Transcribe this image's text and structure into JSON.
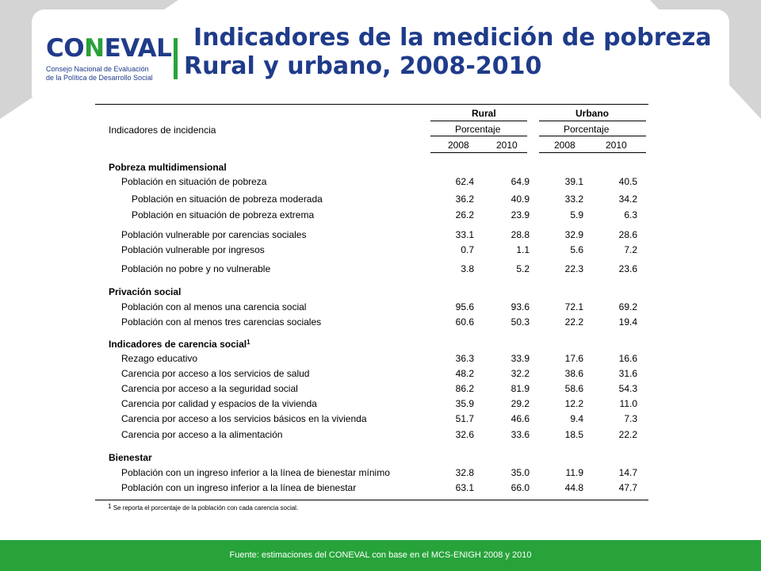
{
  "header": {
    "logo_text_a": "CO",
    "logo_text_l": "N",
    "logo_text_b": "EVAL",
    "logo_tag_1": "Consejo Nacional de Evaluación",
    "logo_tag_2": "de la Política de Desarrollo Social",
    "title_line1": "Indicadores de la medición de pobreza",
    "title_line2": "Rural y urbano, 2008-2010",
    "accent_color": "#1f3b8a",
    "green_color": "#27a33a"
  },
  "table": {
    "stub_header": "Indicadores de incidencia",
    "group_rural": "Rural",
    "group_urbano": "Urbano",
    "unit_rural": "Porcentaje",
    "unit_urbano": "Porcentaje",
    "years": [
      "2008",
      "2010",
      "2008",
      "2010"
    ],
    "rows": [
      {
        "kind": "section",
        "label": "Pobreza multidimensional",
        "sup": ""
      },
      {
        "kind": "lvl1",
        "label": "Población en situación de pobreza",
        "values": [
          "62.4",
          "64.9",
          "39.1",
          "40.5"
        ]
      },
      {
        "kind": "lvl2",
        "label": "Población en situación de pobreza moderada",
        "values": [
          "36.2",
          "40.9",
          "33.2",
          "34.2"
        ]
      },
      {
        "kind": "lvl2",
        "label": "Población en situación de pobreza extrema",
        "values": [
          "26.2",
          "23.9",
          "5.9",
          "6.3"
        ]
      },
      {
        "kind": "lvl1",
        "label": "Población vulnerable por carencias sociales",
        "values": [
          "33.1",
          "28.8",
          "32.9",
          "28.6"
        ]
      },
      {
        "kind": "lvl1",
        "label": "Población vulnerable por ingresos",
        "values": [
          "0.7",
          "1.1",
          "5.6",
          "7.2"
        ]
      },
      {
        "kind": "lvl1",
        "label": "Población no pobre y no vulnerable",
        "values": [
          "3.8",
          "5.2",
          "22.3",
          "23.6"
        ]
      },
      {
        "kind": "section",
        "label": "Privación social",
        "sup": ""
      },
      {
        "kind": "lvl1",
        "label": "Población con al menos una carencia social",
        "values": [
          "95.6",
          "93.6",
          "72.1",
          "69.2"
        ]
      },
      {
        "kind": "lvl1",
        "label": "Población con al menos tres carencias sociales",
        "values": [
          "60.6",
          "50.3",
          "22.2",
          "19.4"
        ]
      },
      {
        "kind": "section",
        "label": "Indicadores de carencia social",
        "sup": "1"
      },
      {
        "kind": "lvl1",
        "label": "Rezago educativo",
        "values": [
          "36.3",
          "33.9",
          "17.6",
          "16.6"
        ]
      },
      {
        "kind": "lvl1",
        "label": "Carencia por acceso a los servicios de salud",
        "values": [
          "48.2",
          "32.2",
          "38.6",
          "31.6"
        ]
      },
      {
        "kind": "lvl1",
        "label": "Carencia por acceso a la seguridad social",
        "values": [
          "86.2",
          "81.9",
          "58.6",
          "54.3"
        ]
      },
      {
        "kind": "lvl1",
        "label": "Carencia por calidad y espacios de la vivienda",
        "values": [
          "35.9",
          "29.2",
          "12.2",
          "11.0"
        ]
      },
      {
        "kind": "lvl1",
        "label": "Carencia por acceso a los servicios básicos en la vivienda",
        "values": [
          "51.7",
          "46.6",
          "9.4",
          "7.3"
        ]
      },
      {
        "kind": "lvl1",
        "label": "Carencia por acceso a la alimentación",
        "values": [
          "32.6",
          "33.6",
          "18.5",
          "22.2"
        ]
      },
      {
        "kind": "section",
        "label": "Bienestar",
        "sup": ""
      },
      {
        "kind": "lvl1",
        "label": "Población con un ingreso inferior a la línea de bienestar mínimo",
        "values": [
          "32.8",
          "35.0",
          "11.9",
          "14.7"
        ]
      },
      {
        "kind": "lvl1",
        "label": "Población con un ingreso inferior a la línea de bienestar",
        "values": [
          "63.1",
          "66.0",
          "44.8",
          "47.7"
        ]
      }
    ],
    "footnote_mark": "1",
    "footnote_text": "Se reporta el porcentaje de la población con cada carencia social."
  },
  "footer": {
    "source": "Fuente: estimaciones del CONEVAL con base en el MCS-ENIGH 2008 y 2010"
  }
}
